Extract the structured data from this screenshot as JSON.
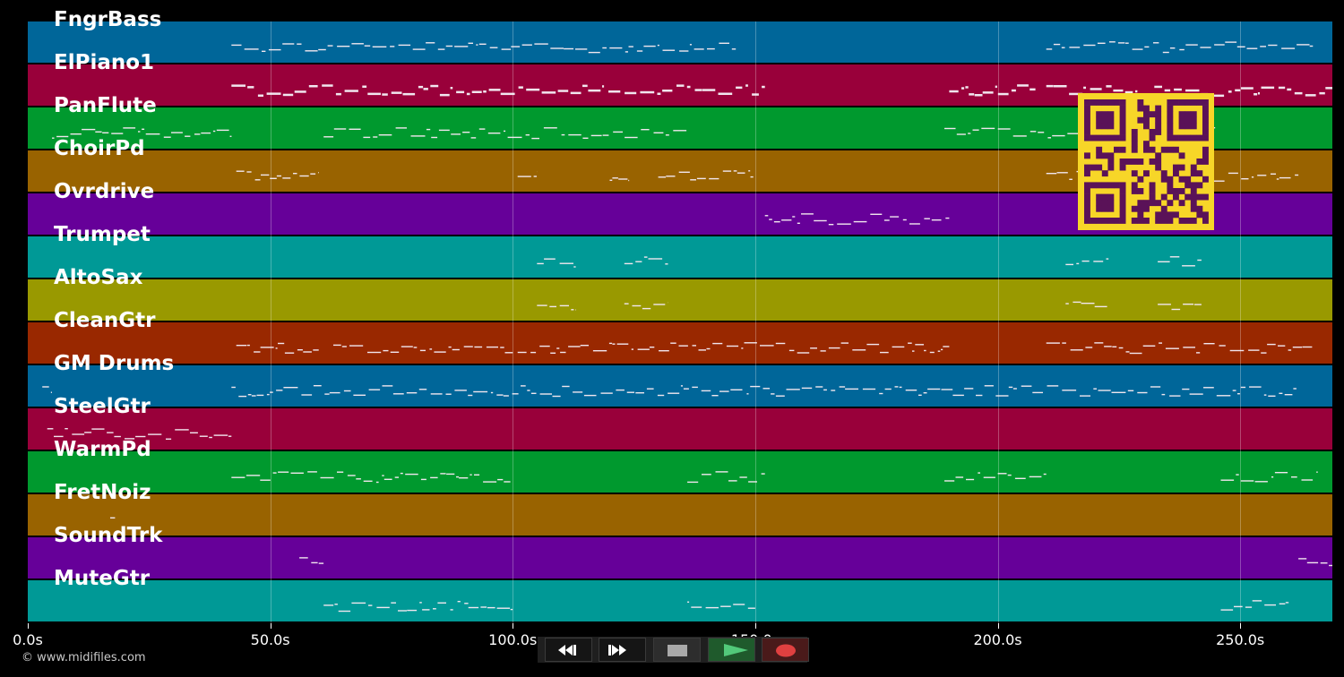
{
  "tracks": [
    {
      "name": "FngrBass",
      "color": "#006699"
    },
    {
      "name": "ElPiano1",
      "color": "#99003a"
    },
    {
      "name": "PanFlute",
      "color": "#00992e"
    },
    {
      "name": "ChoirPd",
      "color": "#996300"
    },
    {
      "name": "Ovrdrive",
      "color": "#660099"
    },
    {
      "name": "Trumpet",
      "color": "#009996"
    },
    {
      "name": "AltoSax",
      "color": "#999900"
    },
    {
      "name": "CleanGtr",
      "color": "#992800"
    },
    {
      "name": "GM Drums",
      "color": "#006699"
    },
    {
      "name": "SteelGtr",
      "color": "#99003a"
    },
    {
      "name": "WarmPd",
      "color": "#00992e"
    },
    {
      "name": "FretNoiz",
      "color": "#996300"
    },
    {
      "name": "SoundTrk",
      "color": "#660099"
    },
    {
      "name": "MuteGtr",
      "color": "#009996"
    }
  ],
  "timeline": {
    "ticks": [
      {
        "value": 0,
        "label": "0.0s"
      },
      {
        "value": 50,
        "label": "50.0s"
      },
      {
        "value": 100,
        "label": "100.0s"
      },
      {
        "value": 150,
        "label": "150.0s"
      },
      {
        "value": 200,
        "label": "200.0s"
      },
      {
        "value": 250,
        "label": "250.0s"
      }
    ],
    "duration": 269
  },
  "transport": {
    "rewind_icon": "rewind-icon",
    "forward_icon": "fast-forward-icon",
    "stop_icon": "stop-icon",
    "play_icon": "play-icon",
    "record_icon": "record-icon"
  },
  "footer": {
    "copyright": "© www.midifiles.com"
  }
}
